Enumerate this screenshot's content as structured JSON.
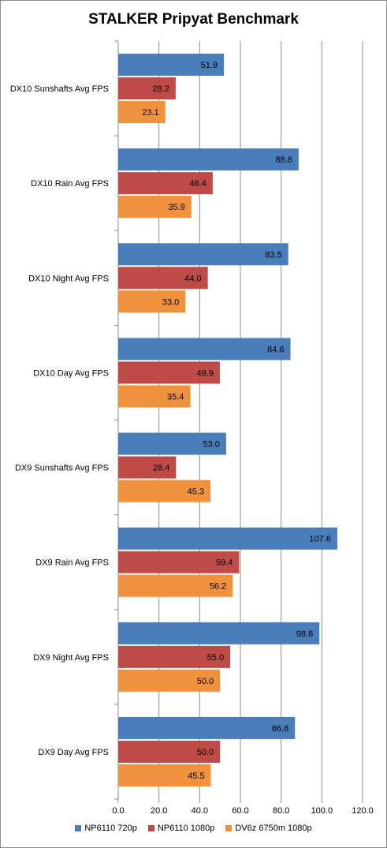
{
  "chart_data": {
    "type": "bar",
    "orientation": "horizontal",
    "title": "STALKER Pripyat Benchmark",
    "xlabel": "",
    "ylabel": "",
    "xlim": [
      0,
      120
    ],
    "x_ticks": [
      "0.0",
      "20.0",
      "40.0",
      "60.0",
      "80.0",
      "100.0",
      "120.0"
    ],
    "grid": true,
    "legend_position": "bottom",
    "categories": [
      "DX10 Sunshafts Avg FPS",
      "DX10 Rain Avg FPS",
      "DX10 Night Avg FPS",
      "DX10 Day Avg FPS",
      "DX9 Sunshafts Avg FPS",
      "DX9 Rain Avg FPS",
      "DX9 Night Avg FPS",
      "DX9 Day Avg FPS"
    ],
    "series": [
      {
        "name": "NP6110 720p",
        "color": "#4a7ebb",
        "values": [
          51.9,
          88.6,
          83.5,
          84.6,
          53.0,
          107.6,
          98.8,
          86.8
        ],
        "labels": [
          "51.9",
          "88.6",
          "83.5",
          "84.6",
          "53.0",
          "107.6",
          "98.8",
          "86.8"
        ]
      },
      {
        "name": "NP6110 1080p",
        "color": "#be4b48",
        "values": [
          28.2,
          46.4,
          44.0,
          49.9,
          28.4,
          59.4,
          55.0,
          50.0
        ],
        "labels": [
          "28.2",
          "46.4",
          "44.0",
          "49.9",
          "28.4",
          "59.4",
          "55.0",
          "50.0"
        ]
      },
      {
        "name": "DV6z 6750m 1080p",
        "color": "#f0923d",
        "values": [
          23.1,
          35.9,
          33.0,
          35.4,
          45.3,
          56.2,
          50.0,
          45.5
        ],
        "labels": [
          "23.1",
          "35.9",
          "33.0",
          "35.4",
          "45.3",
          "56.2",
          "50.0",
          "45.5"
        ]
      }
    ]
  }
}
